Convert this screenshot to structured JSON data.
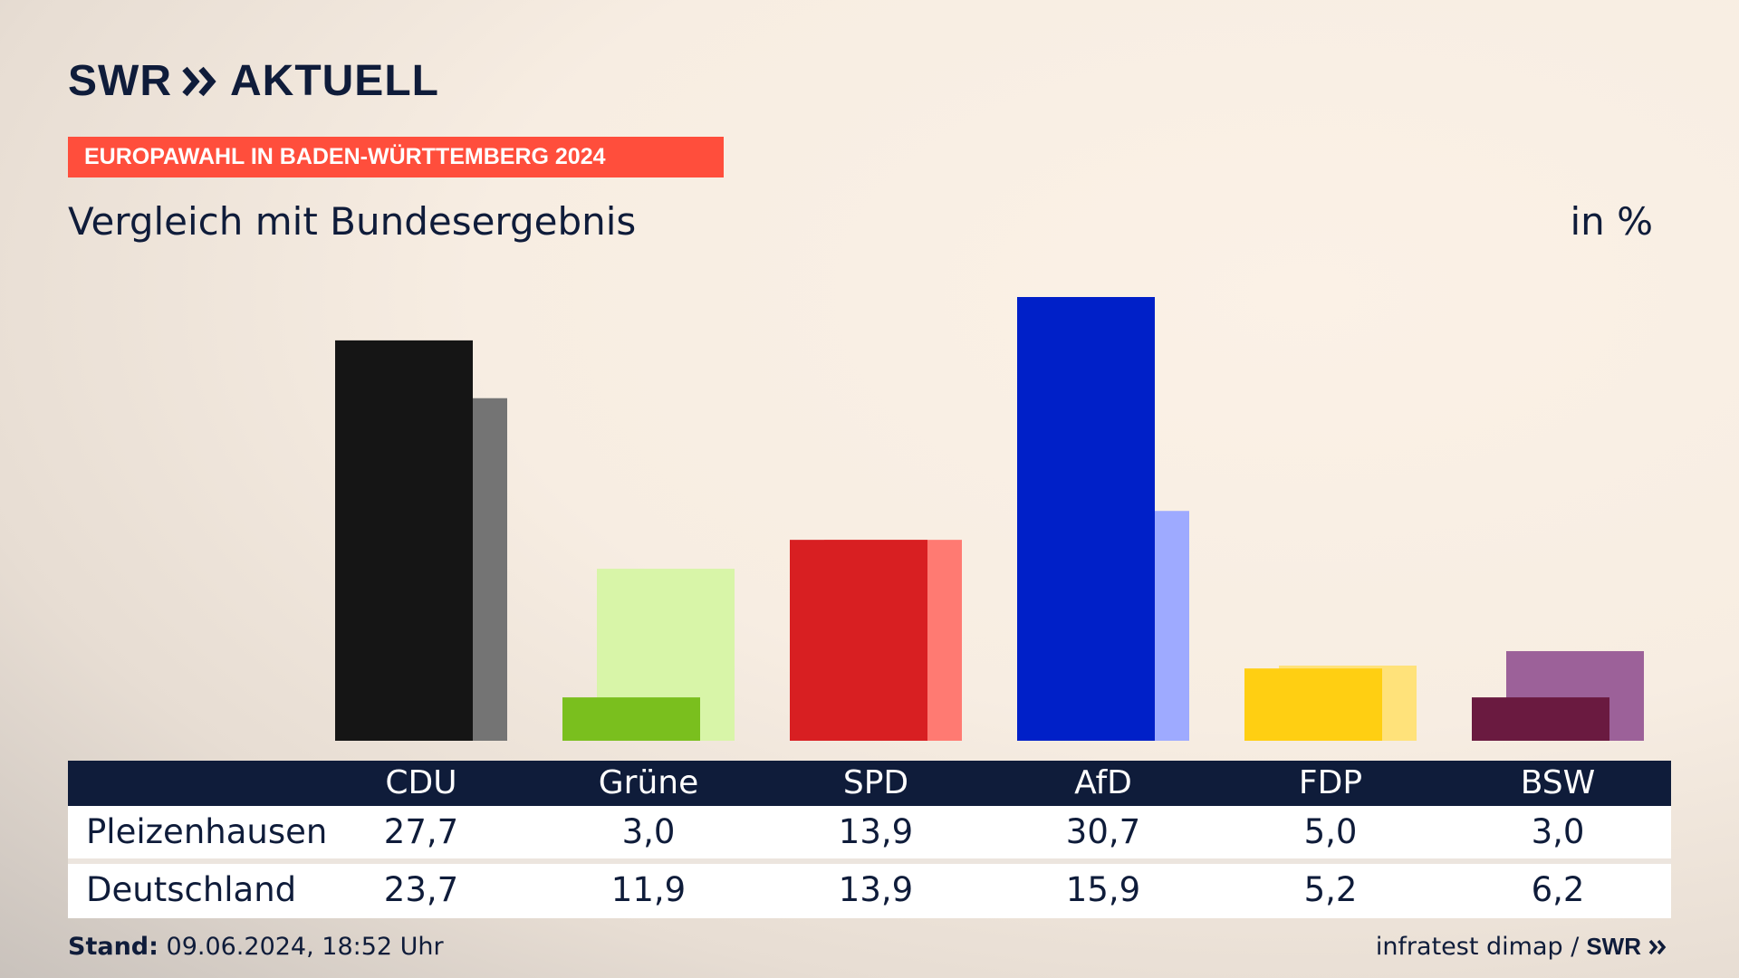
{
  "brand": {
    "name": "SWR",
    "product": "AKTUELL"
  },
  "banner": "EUROPAWAHL IN BADEN-WÜRTTEMBERG 2024",
  "subtitle": "Vergleich mit Bundesergebnis",
  "unit": "in %",
  "footer": {
    "stand_label": "Stand:",
    "stand_value": "09.06.2024, 18:52 Uhr",
    "source": "infratest dimap /",
    "brand": "SWR"
  },
  "chart_data": {
    "type": "bar",
    "categories": [
      "CDU",
      "Grüne",
      "SPD",
      "AfD",
      "FDP",
      "BSW"
    ],
    "series": [
      {
        "name": "Pleizenhausen",
        "values": [
          27.7,
          3.0,
          13.9,
          30.7,
          5.0,
          3.0
        ],
        "display": [
          "27,7",
          "3,0",
          "13,9",
          "30,7",
          "5,0",
          "3,0"
        ]
      },
      {
        "name": "Deutschland",
        "values": [
          23.7,
          11.9,
          13.9,
          15.9,
          5.2,
          6.2
        ],
        "display": [
          "23,7",
          "11,9",
          "13,9",
          "15,9",
          "5,2",
          "6,2"
        ]
      }
    ],
    "colors": {
      "primary": [
        "#151515",
        "#7abf1e",
        "#d81f22",
        "#0020c8",
        "#ffcf12",
        "#6a1a40"
      ],
      "secondary": [
        "#747474",
        "#d8f5a8",
        "#ff7a72",
        "#9eaaff",
        "#ffe27a",
        "#9c6199"
      ]
    },
    "ylim": [
      0,
      30.7
    ]
  }
}
